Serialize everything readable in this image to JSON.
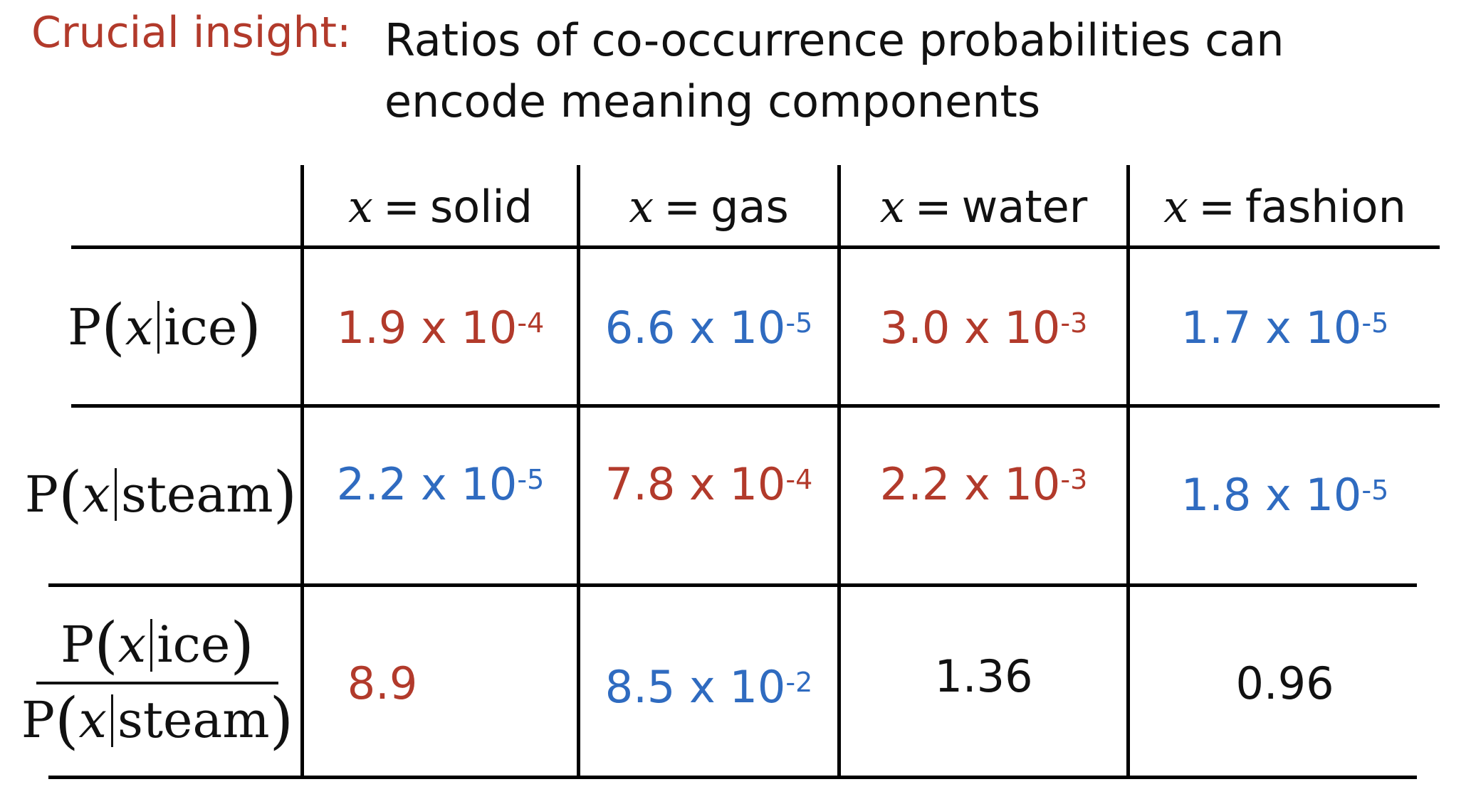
{
  "heading": {
    "label": "Crucial insight:",
    "text": "Ratios of co-occurrence probabilities can encode meaning components"
  },
  "table": {
    "variable": "x",
    "equals": "=",
    "columns": [
      "solid",
      "gas",
      "water",
      "fashion"
    ],
    "row_labels": {
      "p_ice": {
        "p": "P",
        "x": "x",
        "word": "ice"
      },
      "p_steam": {
        "p": "P",
        "x": "x",
        "word": "steam"
      }
    },
    "rows": [
      {
        "cells": [
          {
            "mantissa": "1.9 x 10",
            "exp": "-4",
            "color": "#b23a2b"
          },
          {
            "mantissa": "6.6 x 10",
            "exp": "-5",
            "color": "#2f6bc0"
          },
          {
            "mantissa": "3.0 x 10",
            "exp": "-3",
            "color": "#b23a2b"
          },
          {
            "mantissa": "1.7 x 10",
            "exp": "-5",
            "color": "#2f6bc0"
          }
        ]
      },
      {
        "cells": [
          {
            "mantissa": "2.2 x 10",
            "exp": "-5",
            "color": "#2f6bc0"
          },
          {
            "mantissa": "7.8 x 10",
            "exp": "-4",
            "color": "#b23a2b"
          },
          {
            "mantissa": "2.2 x 10",
            "exp": "-3",
            "color": "#b23a2b"
          },
          {
            "mantissa": "1.8 x 10",
            "exp": "-5",
            "color": "#2f6bc0"
          }
        ]
      },
      {
        "cells": [
          {
            "mantissa": "8.9",
            "exp": "",
            "color": "#b23a2b"
          },
          {
            "mantissa": "8.5 x 10",
            "exp": "-2",
            "color": "#2f6bc0"
          },
          {
            "mantissa": "1.36",
            "exp": "",
            "color": "#111111"
          },
          {
            "mantissa": "0.96",
            "exp": "",
            "color": "#111111"
          }
        ]
      }
    ]
  }
}
